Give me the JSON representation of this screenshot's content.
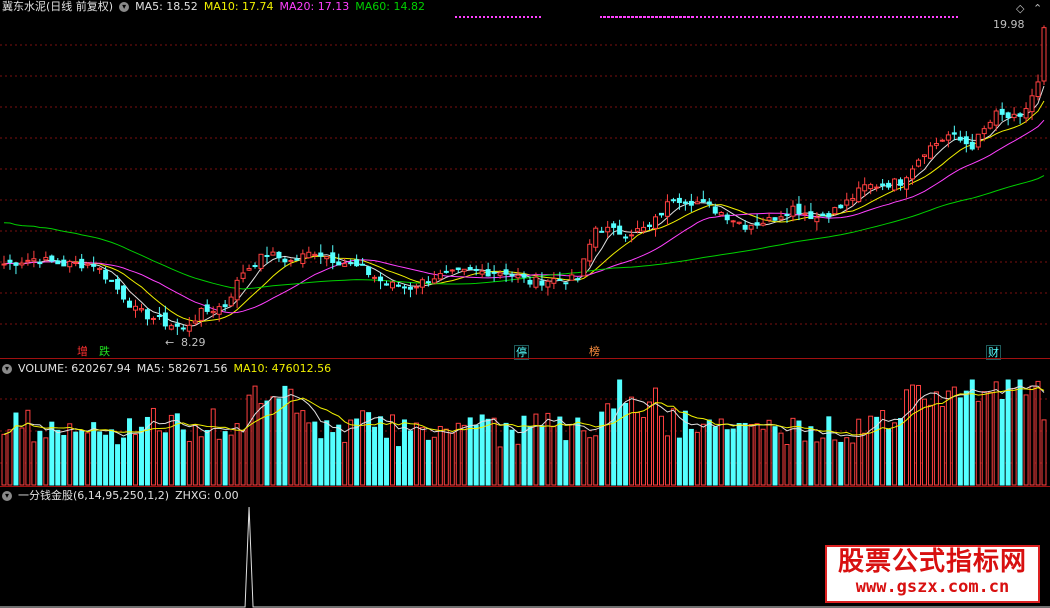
{
  "main": {
    "title": "冀东水泥(日线 前复权)",
    "ma5_label": "MA5: 18.52",
    "ma10_label": "MA10: 17.74",
    "ma20_label": "MA20: 17.13",
    "ma60_label": "MA60: 14.82",
    "high_label": "19.98",
    "low_label": "8.29",
    "colors": {
      "ma5": "#e0e0e0",
      "ma10": "#f0f000",
      "ma20": "#ff40ff",
      "ma60": "#00d000",
      "up": "#ff4040",
      "down": "#54ffff",
      "grid": "#7a1010"
    },
    "tags": [
      {
        "text": "增",
        "color": "#ff3030"
      },
      {
        "text": "跌",
        "color": "#20e020"
      },
      {
        "text": "停",
        "color": "#54ffff"
      },
      {
        "text": "榜",
        "color": "#ff9040"
      },
      {
        "text": "财",
        "color": "#54ffff"
      }
    ]
  },
  "volume": {
    "label": "VOLUME: 620267.94",
    "ma5_label": "MA5: 582671.56",
    "ma10_label": "MA10: 476012.56"
  },
  "indicator": {
    "label": "一分钱金股(6,14,95,250,1,2)",
    "zhxg_label": "ZHXG: 0.00"
  },
  "watermark": {
    "line1": "股票公式指标网",
    "line2": "www.gszx.com.cn"
  },
  "chart_data": {
    "type": "candlestick",
    "series_count_est": 175,
    "price_path": [
      [
        0,
        10.8
      ],
      [
        5,
        11.0
      ],
      [
        10,
        10.8
      ],
      [
        15,
        10.8
      ],
      [
        18,
        10.1
      ],
      [
        22,
        9.0
      ],
      [
        27,
        8.5
      ],
      [
        30,
        8.29
      ],
      [
        33,
        8.9
      ],
      [
        37,
        9.2
      ],
      [
        40,
        10.5
      ],
      [
        44,
        11.2
      ],
      [
        48,
        10.9
      ],
      [
        52,
        11.3
      ],
      [
        55,
        11.0
      ],
      [
        60,
        10.6
      ],
      [
        64,
        10.0
      ],
      [
        68,
        9.9
      ],
      [
        72,
        10.3
      ],
      [
        78,
        10.5
      ],
      [
        84,
        10.5
      ],
      [
        88,
        10.1
      ],
      [
        92,
        10.2
      ],
      [
        96,
        10.2
      ],
      [
        99,
        12.2
      ],
      [
        104,
        12.0
      ],
      [
        108,
        12.2
      ],
      [
        112,
        13.4
      ],
      [
        116,
        13.2
      ],
      [
        120,
        12.8
      ],
      [
        124,
        12.3
      ],
      [
        128,
        12.5
      ],
      [
        132,
        13.0
      ],
      [
        136,
        12.6
      ],
      [
        140,
        13.0
      ],
      [
        144,
        13.8
      ],
      [
        150,
        14.0
      ],
      [
        154,
        15.2
      ],
      [
        158,
        15.8
      ],
      [
        162,
        15.4
      ],
      [
        166,
        16.6
      ],
      [
        170,
        16.4
      ],
      [
        173,
        17.8
      ],
      [
        174,
        19.98
      ]
    ],
    "high": 19.98,
    "low": 8.29,
    "ma": {
      "MA5": 18.52,
      "MA10": 17.74,
      "MA20": 17.13,
      "MA60": 14.82
    },
    "volume": {
      "VOLUME": 620267.94,
      "MA5": 582671.56,
      "MA10": 476012.56
    },
    "indicator": {
      "ZHXG": 0.0,
      "spike_index": 41
    }
  }
}
